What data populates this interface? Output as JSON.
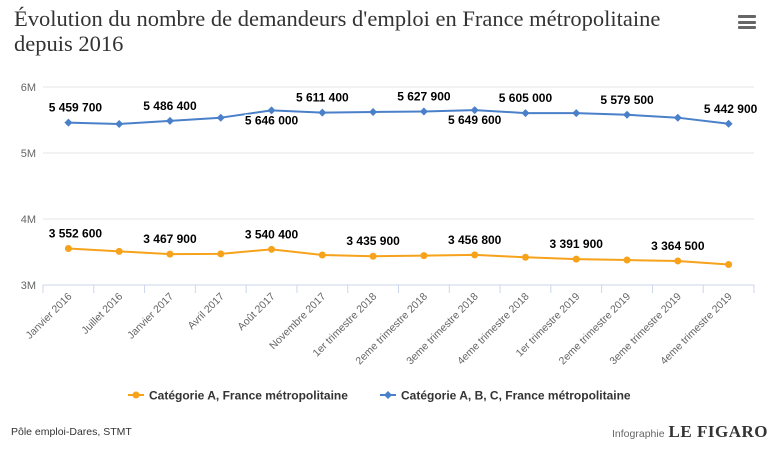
{
  "title": "Évolution du nombre de demandeurs d'emploi en France métropolitaine depuis 2016",
  "menu_icon": "hamburger-menu-icon",
  "source": "Pôle emploi-Dares, STMT",
  "brand": {
    "prefix": "Infographie",
    "logo": "LE FIGARO"
  },
  "chart_data": {
    "type": "line",
    "title": "Évolution du nombre de demandeurs d'emploi en France métropolitaine depuis 2016",
    "xlabel": "",
    "ylabel": "",
    "categories": [
      "Janvier 2016",
      "Juillet 2016",
      "Janvier 2017",
      "Avril 2017",
      "Août 2017",
      "Novembre 2017",
      "1er trimestre 2018",
      "2eme trimestre 2018",
      "3eme trimestre 2018",
      "4eme trimestre 2018",
      "1er trimestre 2019",
      "2eme trimestre 2019",
      "3eme trimestre 2019",
      "4eme trimestre 2019"
    ],
    "ylim": [
      3000000,
      6000000
    ],
    "yticks": [
      3000000,
      4000000,
      5000000,
      6000000
    ],
    "ytick_labels": [
      "3M",
      "4M",
      "5M",
      "6M"
    ],
    "grid": true,
    "legend_position": "bottom",
    "series": [
      {
        "name": "Catégorie A, France métropolitaine",
        "color": "#f7a21b",
        "values": [
          3552600,
          3510000,
          3467900,
          3472000,
          3540400,
          3455000,
          3435900,
          3445000,
          3456800,
          3420000,
          3391900,
          3378000,
          3364500,
          3310000
        ],
        "data_labels": [
          {
            "index": 0,
            "text": "3 552 600"
          },
          {
            "index": 2,
            "text": "3 467 900"
          },
          {
            "index": 4,
            "text": "3 540 400"
          },
          {
            "index": 6,
            "text": "3 435 900"
          },
          {
            "index": 8,
            "text": "3 456 800"
          },
          {
            "index": 10,
            "text": "3 391 900"
          },
          {
            "index": 12,
            "text": "3 364 500"
          }
        ]
      },
      {
        "name": "Catégorie A, B, C, France métropolitaine",
        "color": "#4a80c9",
        "values": [
          5459700,
          5440000,
          5486400,
          5535000,
          5646000,
          5611400,
          5622000,
          5627900,
          5649600,
          5605000,
          5604000,
          5579500,
          5535000,
          5442900
        ],
        "data_labels": [
          {
            "index": 0,
            "text": "5 459 700"
          },
          {
            "index": 2,
            "text": "5 486 400"
          },
          {
            "index": 4,
            "text": "5 646 000",
            "below": true
          },
          {
            "index": 5,
            "text": "5 611 400"
          },
          {
            "index": 7,
            "text": "5 627 900"
          },
          {
            "index": 8,
            "text": "5 649 600",
            "below": true
          },
          {
            "index": 9,
            "text": "5 605 000"
          },
          {
            "index": 11,
            "text": "5 579 500"
          },
          {
            "index": 13,
            "text": "5 442 900"
          }
        ]
      }
    ]
  }
}
